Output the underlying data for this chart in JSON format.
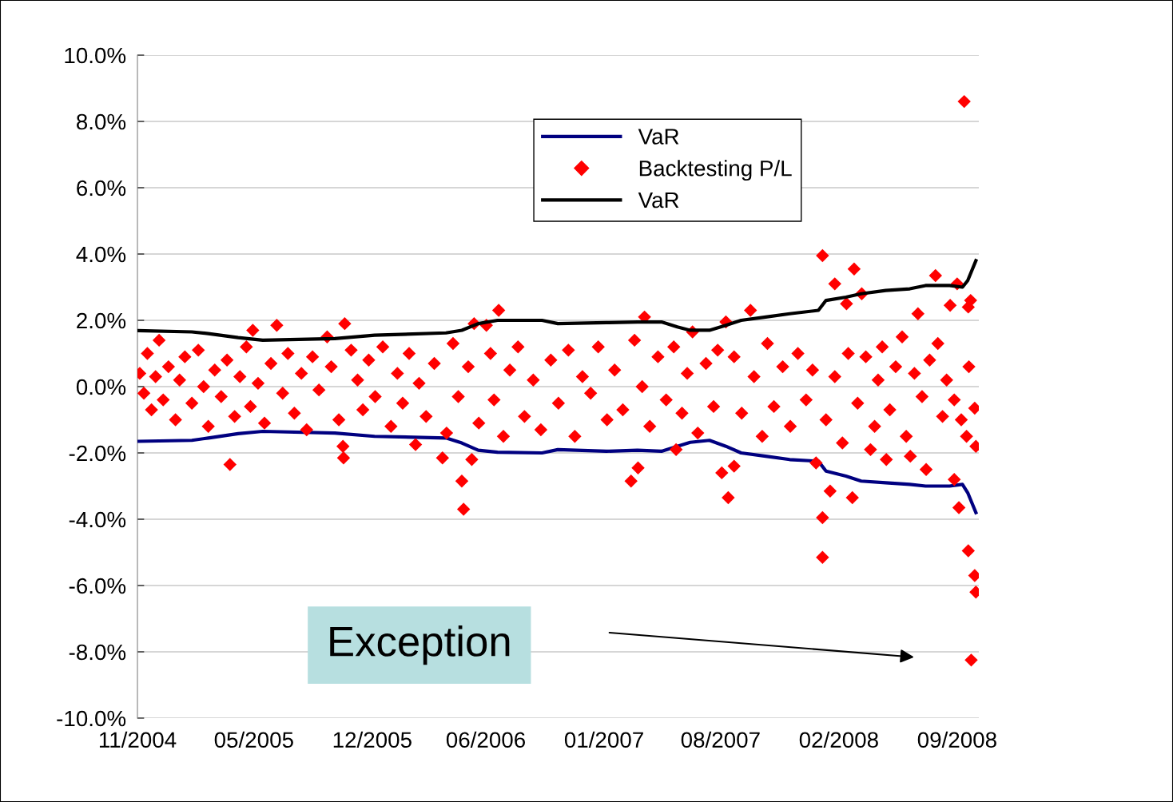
{
  "chart_data": {
    "type": "line",
    "ylim": [
      -10,
      10
    ],
    "yticks": [
      {
        "value": -10,
        "label": "-10.0%"
      },
      {
        "value": -8,
        "label": "-8.0%"
      },
      {
        "value": -6,
        "label": "-6.0%"
      },
      {
        "value": -4,
        "label": "-4.0%"
      },
      {
        "value": -2,
        "label": "-2.0%"
      },
      {
        "value": 0,
        "label": "0.0%"
      },
      {
        "value": 2,
        "label": "2.0%"
      },
      {
        "value": 4,
        "label": "4.0%"
      },
      {
        "value": 6,
        "label": "6.0%"
      },
      {
        "value": 8,
        "label": "8.0%"
      },
      {
        "value": 10,
        "label": "10.0%"
      }
    ],
    "xlim": [
      "2004-11-01",
      "2008-10-08"
    ],
    "xticks": [
      {
        "value": "2004-11-01",
        "label": "11/2004"
      },
      {
        "value": "2005-05-19",
        "label": "05/2005"
      },
      {
        "value": "2005-12-07",
        "label": "12/2005"
      },
      {
        "value": "2006-06-19",
        "label": "06/2006"
      },
      {
        "value": "2007-01-07",
        "label": "01/2007"
      },
      {
        "value": "2007-07-25",
        "label": "08/2007"
      },
      {
        "value": "2008-02-12",
        "label": "02/2008"
      },
      {
        "value": "2008-09-01",
        "label": "09/2008"
      }
    ],
    "grid": "y",
    "legend": "top",
    "annotations": [
      "Exception"
    ],
    "series": [
      {
        "name": "VaR",
        "color": "#000080",
        "marker": "none",
        "line_style": "solid",
        "x": [
          "2004-11-01",
          "2005-02-02",
          "2005-03-02",
          "2005-04-22",
          "2005-06-03",
          "2005-10-04",
          "2005-12-11",
          "2006-04-12",
          "2006-05-09",
          "2006-06-06",
          "2006-07-09",
          "2006-09-23",
          "2006-10-20",
          "2007-01-11",
          "2007-03-05",
          "2007-04-15",
          "2007-05-12",
          "2007-06-03",
          "2007-07-06",
          "2007-08-03",
          "2007-08-29",
          "2007-10-10",
          "2007-11-20",
          "2008-01-08",
          "2008-01-21",
          "2008-02-24",
          "2008-03-21",
          "2008-05-02",
          "2008-06-12",
          "2008-07-09",
          "2008-08-19",
          "2008-09-10",
          "2008-09-19",
          "2008-09-26",
          "2008-10-03"
        ],
        "values": [
          -1.65,
          -1.62,
          -1.55,
          -1.42,
          -1.35,
          -1.4,
          -1.5,
          -1.55,
          -1.7,
          -1.92,
          -1.98,
          -2.0,
          -1.9,
          -1.95,
          -1.92,
          -1.95,
          -1.8,
          -1.68,
          -1.62,
          -1.8,
          -2.0,
          -2.1,
          -2.2,
          -2.25,
          -2.55,
          -2.7,
          -2.85,
          -2.9,
          -2.95,
          -3.0,
          -3.0,
          -2.95,
          -3.2,
          -3.5,
          -3.8
        ]
      },
      {
        "name": "Backtesting P/L",
        "type": "scatter",
        "color": "#ff0000",
        "marker": "diamond",
        "x": [
          "2004-11-05",
          "2004-11-12",
          "2004-11-18",
          "2004-11-25",
          "2004-12-02",
          "2004-12-08",
          "2004-12-15",
          "2004-12-24",
          "2005-01-05",
          "2005-01-12",
          "2005-01-21",
          "2005-02-02",
          "2005-02-13",
          "2005-02-22",
          "2005-03-02",
          "2005-03-13",
          "2005-03-24",
          "2005-04-03",
          "2005-04-08",
          "2005-04-16",
          "2005-04-25",
          "2005-05-06",
          "2005-05-13",
          "2005-05-17",
          "2005-05-26",
          "2005-06-06",
          "2005-06-17",
          "2005-06-27",
          "2005-07-07",
          "2005-07-16",
          "2005-07-27",
          "2005-08-08",
          "2005-08-17",
          "2005-08-27",
          "2005-09-07",
          "2005-09-21",
          "2005-09-28",
          "2005-10-11",
          "2005-10-18",
          "2005-10-19",
          "2005-10-21",
          "2005-11-01",
          "2005-11-12",
          "2005-11-21",
          "2005-12-01",
          "2005-12-12",
          "2005-12-25",
          "2006-01-08",
          "2006-01-19",
          "2006-01-28",
          "2006-02-08",
          "2006-02-19",
          "2006-02-25",
          "2006-03-09",
          "2006-03-23",
          "2006-04-06",
          "2006-04-13",
          "2006-04-24",
          "2006-05-03",
          "2006-05-09",
          "2006-05-12",
          "2006-05-20",
          "2006-05-26",
          "2006-05-30",
          "2006-06-07",
          "2006-06-20",
          "2006-06-27",
          "2006-07-03",
          "2006-07-11",
          "2006-07-19",
          "2006-07-30",
          "2006-08-13",
          "2006-08-24",
          "2006-09-08",
          "2006-09-21",
          "2006-10-08",
          "2006-10-21",
          "2006-11-07",
          "2006-11-18",
          "2006-12-01",
          "2006-12-15",
          "2006-12-28",
          "2007-01-12",
          "2007-01-25",
          "2007-02-08",
          "2007-02-22",
          "2007-02-28",
          "2007-03-06",
          "2007-03-13",
          "2007-03-17",
          "2007-03-26",
          "2007-04-09",
          "2007-04-23",
          "2007-05-06",
          "2007-05-10",
          "2007-05-20",
          "2007-05-29",
          "2007-06-07",
          "2007-06-16",
          "2007-06-30",
          "2007-07-13",
          "2007-07-20",
          "2007-07-27",
          "2007-08-03",
          "2007-08-07",
          "2007-08-17",
          "2007-08-17",
          "2007-08-30",
          "2007-09-14",
          "2007-09-20",
          "2007-10-04",
          "2007-10-13",
          "2007-10-24",
          "2007-11-08",
          "2007-11-21",
          "2007-12-04",
          "2007-12-18",
          "2007-12-29",
          "2008-01-04",
          "2008-01-15",
          "2008-01-15",
          "2008-01-15",
          "2008-01-21",
          "2008-01-28",
          "2008-02-05",
          "2008-02-05",
          "2008-02-18",
          "2008-02-25",
          "2008-02-28",
          "2008-03-06",
          "2008-03-09",
          "2008-03-15",
          "2008-03-22",
          "2008-03-29",
          "2008-04-06",
          "2008-04-13",
          "2008-04-19",
          "2008-04-26",
          "2008-05-03",
          "2008-05-09",
          "2008-05-19",
          "2008-05-30",
          "2008-06-06",
          "2008-06-13",
          "2008-06-20",
          "2008-06-26",
          "2008-07-03",
          "2008-07-10",
          "2008-07-16",
          "2008-07-26",
          "2008-07-30",
          "2008-08-07",
          "2008-08-14",
          "2008-08-20",
          "2008-08-27",
          "2008-08-27",
          "2008-09-01",
          "2008-09-04",
          "2008-09-08",
          "2008-09-13",
          "2008-09-17",
          "2008-09-20",
          "2008-09-20",
          "2008-09-21",
          "2008-09-24",
          "2008-09-25",
          "2008-10-01",
          "2008-10-01",
          "2008-10-03",
          "2008-10-03"
        ],
        "values": [
          0.4,
          -0.2,
          1.0,
          -0.7,
          0.3,
          1.4,
          -0.4,
          0.6,
          -1.0,
          0.2,
          0.9,
          -0.5,
          1.1,
          0.0,
          -1.2,
          0.5,
          -0.3,
          0.8,
          -2.35,
          -0.9,
          0.3,
          1.2,
          -0.6,
          1.7,
          0.1,
          -1.1,
          0.7,
          1.85,
          -0.2,
          1.0,
          -0.8,
          0.4,
          -1.3,
          0.9,
          -0.1,
          1.5,
          0.6,
          -1.0,
          -1.8,
          -2.15,
          1.9,
          1.1,
          0.2,
          -0.7,
          0.8,
          -0.3,
          1.2,
          -1.2,
          0.4,
          -0.5,
          1.0,
          -1.75,
          0.1,
          -0.9,
          0.7,
          -2.15,
          -1.4,
          1.3,
          -0.3,
          -2.85,
          -3.7,
          0.6,
          -2.2,
          1.9,
          -1.1,
          1.85,
          1.0,
          -0.4,
          2.3,
          -1.5,
          0.5,
          1.2,
          -0.9,
          0.2,
          -1.3,
          0.8,
          -0.5,
          1.1,
          -1.5,
          0.3,
          -0.2,
          1.2,
          -1.0,
          0.5,
          -0.7,
          -2.85,
          1.4,
          -2.45,
          0.0,
          2.1,
          -1.2,
          0.9,
          -0.4,
          1.2,
          -1.9,
          -0.8,
          0.4,
          1.65,
          -1.4,
          0.7,
          -0.6,
          1.1,
          -2.6,
          1.95,
          -3.35,
          -2.4,
          0.9,
          -0.8,
          2.3,
          0.3,
          -1.5,
          1.3,
          -0.6,
          0.6,
          -1.2,
          1.0,
          -0.4,
          0.5,
          -2.3,
          -5.15,
          -3.95,
          3.95,
          -1.0,
          -3.15,
          3.1,
          0.3,
          -1.7,
          2.5,
          1.0,
          -3.35,
          3.55,
          -0.5,
          2.8,
          0.9,
          -1.9,
          -1.2,
          0.2,
          1.2,
          -2.2,
          -0.7,
          0.6,
          1.5,
          -1.5,
          -2.1,
          0.4,
          2.2,
          -0.3,
          -2.5,
          0.8,
          3.35,
          1.3,
          -0.9,
          0.2,
          2.45,
          -0.4,
          -2.8,
          3.1,
          -3.65,
          -1.0,
          8.6,
          -1.5,
          -4.95,
          2.4,
          0.6,
          2.6,
          -8.25,
          -5.7,
          -0.65,
          -6.2,
          -1.8
        ]
      },
      {
        "name": "VaR",
        "color": "#000000",
        "marker": "none",
        "line_style": "solid",
        "x": [
          "2004-11-01",
          "2005-02-02",
          "2005-03-02",
          "2005-04-22",
          "2005-06-03",
          "2005-10-04",
          "2005-12-11",
          "2006-04-12",
          "2006-05-09",
          "2006-06-06",
          "2006-07-09",
          "2006-09-23",
          "2006-10-20",
          "2007-01-11",
          "2007-03-05",
          "2007-04-15",
          "2007-05-12",
          "2007-06-03",
          "2007-07-06",
          "2007-08-03",
          "2007-08-29",
          "2007-10-10",
          "2007-11-20",
          "2008-01-08",
          "2008-01-21",
          "2008-02-24",
          "2008-03-21",
          "2008-05-02",
          "2008-06-12",
          "2008-07-09",
          "2008-08-19",
          "2008-09-10",
          "2008-09-19",
          "2008-09-26",
          "2008-10-03"
        ],
        "values": [
          1.69,
          1.65,
          1.6,
          1.48,
          1.4,
          1.45,
          1.55,
          1.62,
          1.7,
          1.9,
          2.0,
          2.0,
          1.9,
          1.93,
          1.95,
          1.95,
          1.8,
          1.7,
          1.7,
          1.85,
          2.0,
          2.1,
          2.2,
          2.3,
          2.6,
          2.7,
          2.8,
          2.9,
          2.95,
          3.05,
          3.05,
          3.0,
          3.2,
          3.5,
          3.8
        ]
      }
    ]
  }
}
